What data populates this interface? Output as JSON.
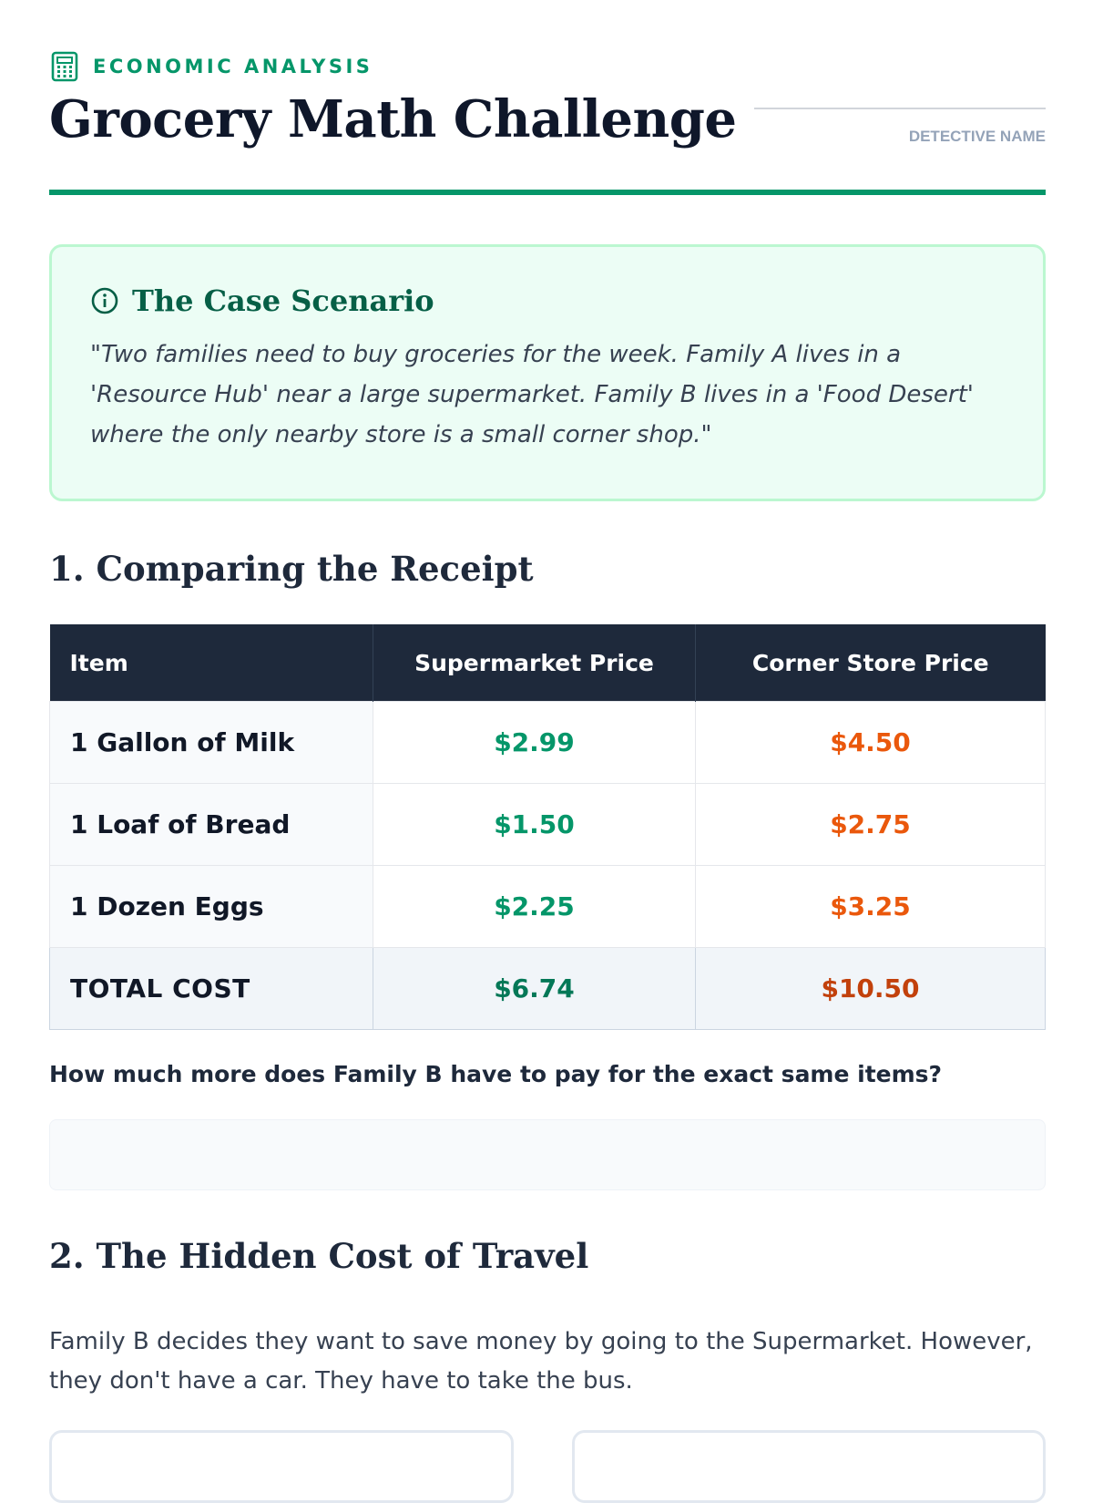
{
  "header": {
    "kicker": "ECONOMIC ANALYSIS",
    "title": "Grocery Math Challenge",
    "name_label": "DETECTIVE NAME",
    "kicker_icon": "calculator-icon"
  },
  "scenario": {
    "title": "The Case Scenario",
    "icon": "info-icon",
    "text": "\"Two families need to buy groceries for the week. Family A lives in a 'Resource Hub' near a large supermarket. Family B lives in a 'Food Desert' where the only nearby store is a small corner shop.\""
  },
  "section1": {
    "title": "1. Comparing the Receipt",
    "table": {
      "headers": [
        "Item",
        "Supermarket Price",
        "Corner Store Price"
      ],
      "rows": [
        {
          "item": "1 Gallon of Milk",
          "supermarket": "$2.99",
          "corner": "$4.50"
        },
        {
          "item": "1 Loaf of Bread",
          "supermarket": "$1.50",
          "corner": "$2.75"
        },
        {
          "item": "1 Dozen Eggs",
          "supermarket": "$2.25",
          "corner": "$3.25"
        }
      ],
      "total": {
        "item": "TOTAL COST",
        "supermarket": "$6.74",
        "corner": "$10.50"
      }
    },
    "question": "How much more does Family B have to pay for the exact same items?",
    "answer": ""
  },
  "section2": {
    "title": "2. The Hidden Cost of Travel",
    "text": "Family B decides they want to save money by going to the Supermarket. However, they don't have a car. They have to take the bus."
  },
  "colors": {
    "accent": "#059669",
    "supermarket": "#059669",
    "corner_store": "#ea580c",
    "header_bg": "#1e293b"
  }
}
